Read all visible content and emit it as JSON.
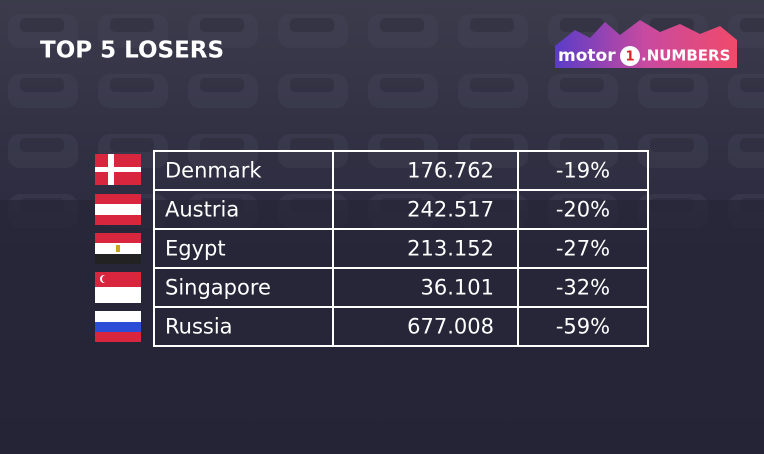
{
  "header": {
    "title": "TOP 5 LOSERS",
    "logo": {
      "brand": "motor",
      "mark": "1",
      "product": ".NUMBERS"
    }
  },
  "table": {
    "rows": [
      [
        "Denmark",
        "176.762",
        "-19%"
      ],
      [
        "Austria",
        "242.517",
        "-20%"
      ],
      [
        "Egypt",
        "213.152",
        "-27%"
      ],
      [
        "Singapore",
        "36.101",
        "-32%"
      ],
      [
        "Russia",
        "677.008",
        "-59%"
      ]
    ]
  }
}
